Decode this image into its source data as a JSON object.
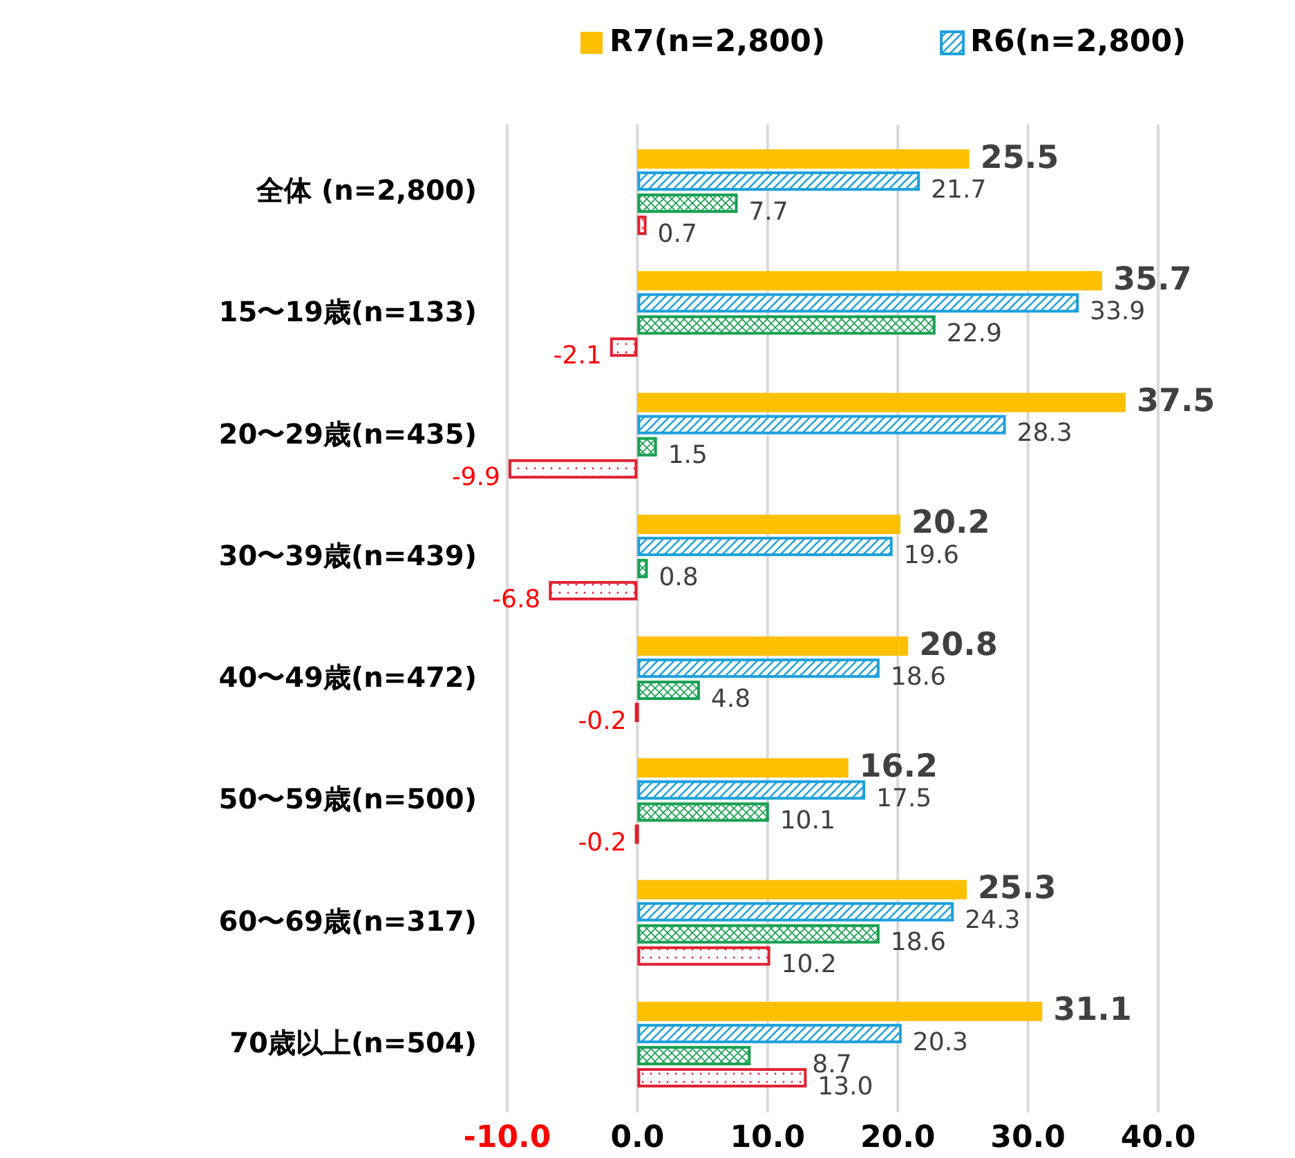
{
  "chart_data": {
    "type": "bar",
    "orientation": "horizontal",
    "categories": [
      "全体 (n=2,800)",
      "15〜19歳(n=133)",
      "20〜29歳(n=435)",
      "30〜39歳(n=439)",
      "40〜49歳(n=472)",
      "50〜59歳(n=500)",
      "60〜69歳(n=317)",
      "70歳以上(n=504)"
    ],
    "series": [
      {
        "name": "R7(n=2,800)",
        "color": "#ffc000",
        "values": [
          25.5,
          35.7,
          37.5,
          20.2,
          20.8,
          16.2,
          25.3,
          31.1
        ],
        "value_labels": [
          "25.5",
          "35.7",
          "37.5",
          "20.2",
          "20.8",
          "16.2",
          "25.3",
          "31.1"
        ]
      },
      {
        "name": "R6(n=2,800)",
        "color": "#1ca0dc",
        "values": [
          21.7,
          33.9,
          28.3,
          19.6,
          18.6,
          17.5,
          24.3,
          20.3
        ],
        "value_labels": [
          "21.7",
          "33.9",
          "28.3",
          "19.6",
          "18.6",
          "17.5",
          "24.3",
          "20.3"
        ]
      },
      {
        "color": "#16a050",
        "values": [
          7.7,
          22.9,
          1.5,
          0.8,
          4.8,
          10.1,
          18.6,
          8.7
        ],
        "value_labels": [
          "7.7",
          "22.9",
          "1.5",
          "0.8",
          "4.8",
          "10.1",
          "18.6",
          "8.7"
        ]
      },
      {
        "color": "#e02030",
        "values": [
          0.7,
          -2.1,
          -9.9,
          -6.8,
          -0.2,
          -0.2,
          10.2,
          13.0
        ],
        "value_labels": [
          "0.7",
          "-2.1",
          "-9.9",
          "-6.8",
          "-0.2",
          "-0.2",
          "10.2",
          "13.0"
        ]
      }
    ],
    "xlim": [
      -10,
      40
    ],
    "xticks": [
      {
        "value": -10,
        "label": "-10.0"
      },
      {
        "value": 0,
        "label": "0.0"
      },
      {
        "value": 10,
        "label": "10.0"
      },
      {
        "value": 20,
        "label": "20.0"
      },
      {
        "value": 30,
        "label": "30.0"
      },
      {
        "value": 40,
        "label": "40.0"
      }
    ],
    "grid": "x",
    "legend": "top right"
  }
}
